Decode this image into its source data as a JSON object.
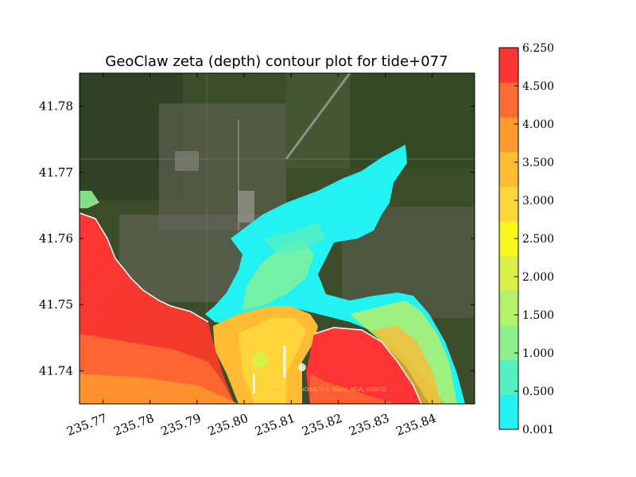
{
  "chart_data": {
    "type": "heatmap",
    "title": "GeoClaw zeta (depth) contour plot for tide+077",
    "xlabel": "",
    "ylabel": "",
    "xlim": [
      235.765,
      235.849
    ],
    "ylim": [
      41.735,
      41.785
    ],
    "x_ticks": [
      "235.77",
      "235.78",
      "235.79",
      "235.80",
      "235.81",
      "235.82",
      "235.83",
      "235.84"
    ],
    "x_tick_values": [
      235.77,
      235.78,
      235.79,
      235.8,
      235.81,
      235.82,
      235.83,
      235.84
    ],
    "y_ticks": [
      "41.74",
      "41.75",
      "41.76",
      "41.77",
      "41.78"
    ],
    "y_tick_values": [
      41.74,
      41.75,
      41.76,
      41.77,
      41.78
    ],
    "colorbar": {
      "labels": [
        "0.001",
        "0.500",
        "1.000",
        "1.500",
        "2.000",
        "2.500",
        "3.000",
        "3.500",
        "4.000",
        "4.500",
        "6.250"
      ],
      "values": [
        0.001,
        0.5,
        1.0,
        1.5,
        2.0,
        2.5,
        3.0,
        3.5,
        4.0,
        4.5,
        6.25
      ],
      "colors": [
        "#22f2f2",
        "#55f0c2",
        "#8ff08e",
        "#b4f06c",
        "#d8f048",
        "#f7f71e",
        "#ffd53a",
        "#ffbb33",
        "#ff9a2e",
        "#ff6a33",
        "#ff3535"
      ]
    },
    "background": "satellite imagery",
    "credit_text": "Data SIO, NOAA, U.S. Navy, NGA, GEBCO"
  }
}
